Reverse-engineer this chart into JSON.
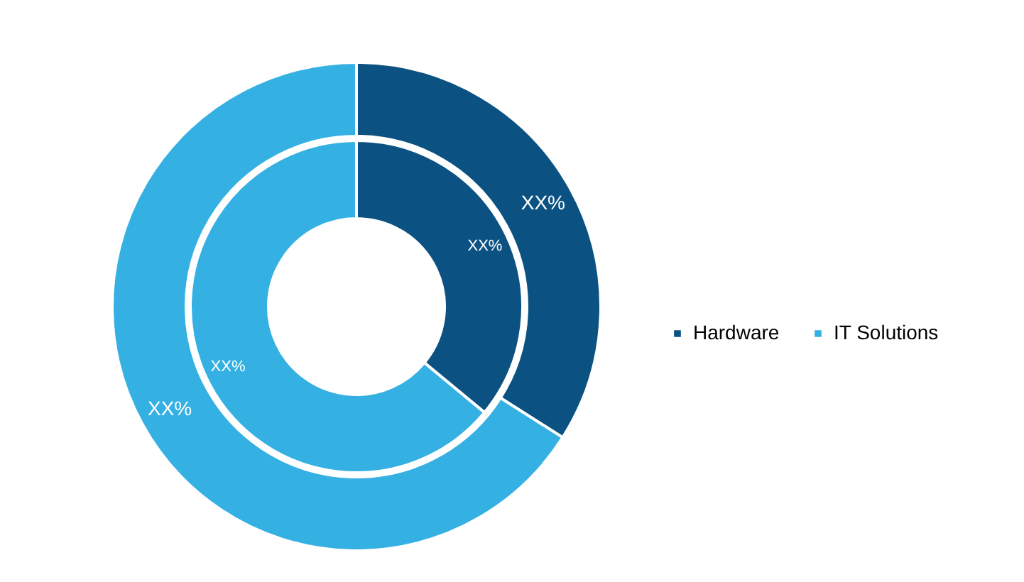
{
  "chart_data": {
    "type": "donut",
    "categories": [
      "Hardware",
      "IT Solutions"
    ],
    "colors": [
      "#0b5282",
      "#35b0e3"
    ],
    "series": [
      {
        "values": [
          36,
          64
        ],
        "value_labels": [
          "XX%",
          "XX%"
        ]
      },
      {
        "values": [
          34,
          66
        ],
        "value_labels": [
          "XX%",
          "XX%"
        ]
      }
    ],
    "legend": "right"
  }
}
